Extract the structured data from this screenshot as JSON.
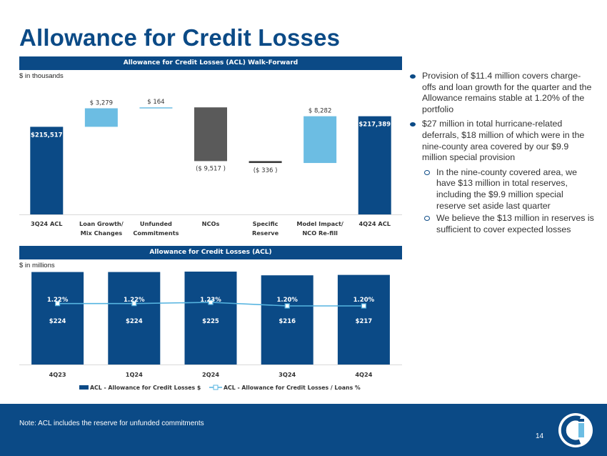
{
  "page": {
    "title": "Allowance for Credit Losses",
    "footnote": "Note: ACL includes the reserve for unfunded commitments",
    "page_number": "14"
  },
  "colors": {
    "navy": "#0b4a86",
    "light_blue": "#6cbde3",
    "gray": "#5a5a5a",
    "line": "#56b4e0"
  },
  "chart_data": [
    {
      "type": "bar",
      "subtype": "waterfall",
      "title": "Allowance for Credit Losses (ACL) Walk-Forward",
      "unit_label": "$ in thousands",
      "categories": [
        "3Q24 ACL",
        "Loan Growth/\nMix Changes",
        "Unfunded\nCommitments",
        "NCOs",
        "Specific\nReserve",
        "Model Impact/\nNCO Re-fill",
        "4Q24 ACL"
      ],
      "values": [
        215517,
        3279,
        164,
        -9517,
        -336,
        8282,
        217389
      ],
      "kinds": [
        "total",
        "delta",
        "delta",
        "delta",
        "delta",
        "delta",
        "total"
      ],
      "labels": [
        "$215,517",
        "$ 3,279",
        "$ 164",
        "($ 9,517 )",
        "($ 336 )",
        "$ 8,282",
        "$217,389"
      ]
    },
    {
      "type": "bar",
      "title": "Allowance for Credit Losses (ACL)",
      "unit_label": "$ in millions",
      "categories": [
        "4Q23",
        "1Q24",
        "2Q24",
        "3Q24",
        "4Q24"
      ],
      "series": [
        {
          "name": "ACL - Allowance for Credit Losses $",
          "kind": "bar",
          "values": [
            224,
            224,
            225,
            216,
            217
          ],
          "labels": [
            "$224",
            "$224",
            "$225",
            "$216",
            "$217"
          ]
        },
        {
          "name": "ACL - Allowance for Credit Losses / Loans %",
          "kind": "line",
          "values": [
            1.22,
            1.22,
            1.23,
            1.2,
            1.2
          ],
          "labels": [
            "1.22%",
            "1.22%",
            "1.23%",
            "1.20%",
            "1.20%"
          ]
        }
      ]
    }
  ],
  "bullets": [
    {
      "text": "Provision of $11.4 million covers charge-offs and loan growth for the quarter and the Allowance remains stable at 1.20% of the portfolio",
      "sub": []
    },
    {
      "text": "$27 million in total hurricane-related deferrals, $18 million of which were in the nine-county area covered by our $9.9 million special provision",
      "sub": [
        "In the nine-county covered area, we have $13 million in total reserves, including the $9.9 million special reserve set aside last quarter",
        "We believe the $13 million in reserves is sufficient to cover expected losses"
      ]
    }
  ]
}
